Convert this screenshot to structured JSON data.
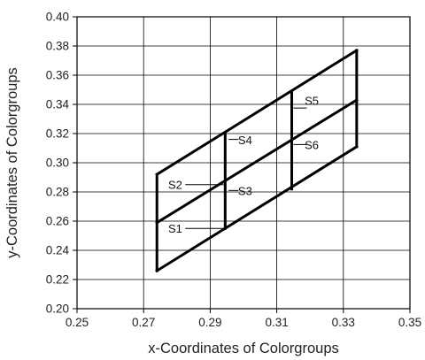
{
  "chart_data": {
    "type": "line",
    "title": "",
    "xlabel": "x-Coordinates of Colorgroups",
    "ylabel": "y-Coordinates of Colorgroups",
    "xlim": [
      0.25,
      0.35
    ],
    "ylim": [
      0.2,
      0.4
    ],
    "xticks": [
      "0.25",
      "0.27",
      "0.29",
      "0.31",
      "0.33",
      "0.35"
    ],
    "yticks": [
      "0.20",
      "0.22",
      "0.24",
      "0.26",
      "0.28",
      "0.30",
      "0.32",
      "0.34",
      "0.36",
      "0.38",
      "0.40"
    ],
    "grid": true,
    "line_color": "#000000",
    "grid_color": "#000000",
    "segments": [
      {
        "name": "outline-left-edge",
        "points": [
          [
            0.274,
            0.226
          ],
          [
            0.274,
            0.292
          ]
        ]
      },
      {
        "name": "outline-right-edge",
        "points": [
          [
            0.334,
            0.311
          ],
          [
            0.334,
            0.377
          ]
        ]
      },
      {
        "name": "outline-bottom-edge",
        "points": [
          [
            0.274,
            0.226
          ],
          [
            0.334,
            0.311
          ]
        ]
      },
      {
        "name": "outline-top-edge",
        "points": [
          [
            0.274,
            0.292
          ],
          [
            0.334,
            0.377
          ]
        ]
      },
      {
        "name": "middle-divider",
        "points": [
          [
            0.274,
            0.259
          ],
          [
            0.334,
            0.343
          ]
        ]
      },
      {
        "name": "left-vertical-divider",
        "points": [
          [
            0.2945,
            0.255
          ],
          [
            0.2945,
            0.32
          ]
        ]
      },
      {
        "name": "right-vertical-divider",
        "points": [
          [
            0.3145,
            0.282
          ],
          [
            0.3145,
            0.348
          ]
        ]
      }
    ],
    "annotations": [
      {
        "label": "S1",
        "x": 0.2795,
        "y": 0.255,
        "leader": [
          [
            0.2825,
            0.255
          ],
          [
            0.294,
            0.255
          ]
        ]
      },
      {
        "label": "S2",
        "x": 0.2795,
        "y": 0.285,
        "leader": [
          [
            0.2825,
            0.285
          ],
          [
            0.294,
            0.285
          ]
        ]
      },
      {
        "label": "S3",
        "x": 0.3005,
        "y": 0.2805,
        "leader": [
          [
            0.2955,
            0.281
          ],
          [
            0.2985,
            0.281
          ]
        ]
      },
      {
        "label": "S4",
        "x": 0.3005,
        "y": 0.3155,
        "leader": [
          [
            0.2955,
            0.316
          ],
          [
            0.2985,
            0.316
          ]
        ]
      },
      {
        "label": "S5",
        "x": 0.3205,
        "y": 0.3425,
        "leader": [
          [
            0.315,
            0.3375
          ],
          [
            0.319,
            0.3375
          ]
        ]
      },
      {
        "label": "S6",
        "x": 0.3205,
        "y": 0.312,
        "leader": [
          [
            0.315,
            0.3125
          ],
          [
            0.319,
            0.3125
          ]
        ]
      }
    ]
  }
}
